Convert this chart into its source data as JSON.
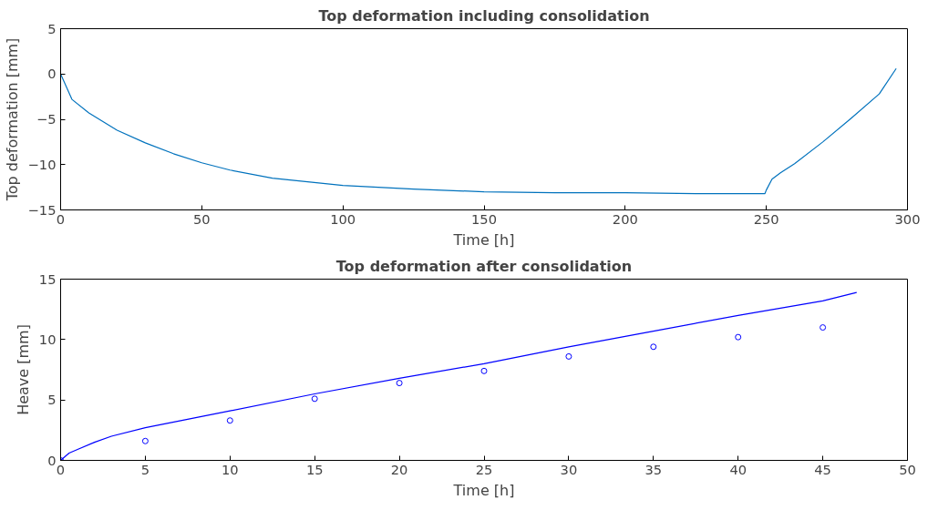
{
  "chart_data": [
    {
      "type": "line",
      "title": "Top deformation including consolidation",
      "xlabel": "Time [h]",
      "ylabel": "Top deformation [mm]",
      "xlim": [
        0,
        300
      ],
      "ylim": [
        -15,
        5
      ],
      "xticks": [
        0,
        50,
        100,
        150,
        200,
        250,
        300
      ],
      "yticks": [
        -15,
        -10,
        -5,
        0,
        5
      ],
      "grid": false,
      "series": [
        {
          "color": "#0072bd",
          "x": [
            0,
            4,
            10,
            20,
            30,
            40,
            50,
            60,
            75,
            100,
            125,
            150,
            175,
            200,
            225,
            249.5,
            250,
            252,
            255,
            260,
            270,
            280,
            290,
            296
          ],
          "values": [
            0,
            -2.8,
            -4.3,
            -6.2,
            -7.6,
            -8.8,
            -9.8,
            -10.6,
            -11.5,
            -12.3,
            -12.7,
            -13.0,
            -13.1,
            -13.1,
            -13.2,
            -13.2,
            -12.8,
            -11.6,
            -10.9,
            -9.9,
            -7.5,
            -4.9,
            -2.2,
            0.6
          ]
        }
      ]
    },
    {
      "type": "line",
      "title": "Top deformation after consolidation",
      "xlabel": "Time [h]",
      "ylabel": "Heave [mm]",
      "xlim": [
        0,
        50
      ],
      "ylim": [
        0,
        15
      ],
      "xticks": [
        0,
        5,
        10,
        15,
        20,
        25,
        30,
        35,
        40,
        45,
        50
      ],
      "yticks": [
        0,
        5,
        10,
        15
      ],
      "grid": false,
      "series": [
        {
          "type": "line",
          "color": "#0000ff",
          "x": [
            0,
            0.5,
            1,
            2,
            3,
            5,
            10,
            15,
            20,
            25,
            30,
            35,
            40,
            45,
            47
          ],
          "values": [
            0,
            0.6,
            0.9,
            1.5,
            2.0,
            2.7,
            4.1,
            5.5,
            6.8,
            8.0,
            9.4,
            10.7,
            12.0,
            13.2,
            13.9
          ]
        },
        {
          "type": "scatter",
          "marker": "circle",
          "color": "#0000ff",
          "x": [
            0,
            5,
            10,
            15,
            20,
            25,
            30,
            35,
            40,
            45
          ],
          "values": [
            0,
            1.6,
            3.3,
            5.1,
            6.4,
            7.4,
            8.6,
            9.4,
            10.2,
            11.0
          ]
        }
      ]
    }
  ]
}
